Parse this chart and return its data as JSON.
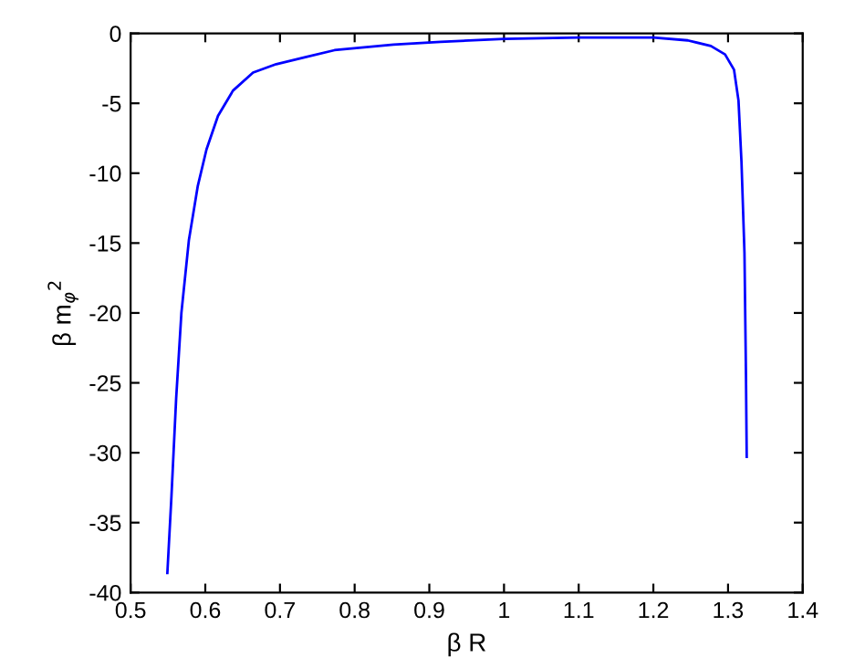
{
  "chart_data": {
    "type": "line",
    "xlabel": "β R",
    "ylabel": "β m$_{φ}$$^{2}$",
    "series": [
      {
        "color": "#0000ff",
        "x": [
          0.5492,
          0.5547,
          0.561,
          0.568,
          0.578,
          0.59,
          0.6016,
          0.617,
          0.637,
          0.664,
          0.695,
          0.734,
          0.773,
          0.8125,
          0.852,
          0.915,
          1.0,
          1.1,
          1.2,
          1.246,
          1.277,
          1.296,
          1.308,
          1.314,
          1.318,
          1.322,
          1.324,
          1.325
        ],
        "values": [
          -38.6,
          -33.1,
          -26.1,
          -20.0,
          -14.8,
          -10.9,
          -8.3,
          -5.9,
          -4.1,
          -2.8,
          -2.2,
          -1.7,
          -1.2,
          -1.0,
          -0.8,
          -0.6,
          -0.4,
          -0.3,
          -0.3,
          -0.5,
          -0.9,
          -1.5,
          -2.6,
          -4.8,
          -9.2,
          -15.7,
          -24.4,
          -30.3
        ]
      }
    ],
    "xlim": [
      0.5,
      1.4
    ],
    "xticks": [
      0.5,
      0.6,
      0.7,
      0.8,
      0.9,
      1,
      1.1,
      1.2,
      1.3,
      1.4
    ],
    "ylim": [
      -40,
      0
    ],
    "yticks": [
      -40,
      -35,
      -30,
      -25,
      -20,
      -15,
      -10,
      -5,
      0
    ],
    "grid": false,
    "line_style": "solid",
    "marker": "none"
  }
}
